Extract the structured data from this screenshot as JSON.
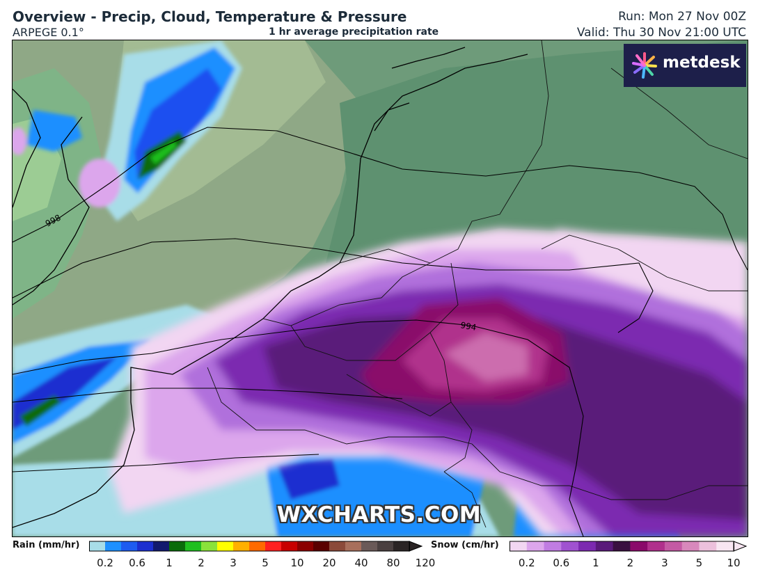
{
  "header": {
    "title": "Overview - Precip, Cloud, Temperature & Pressure",
    "model": "ARPEGE 0.1°",
    "subtitle": "1 hr average precipitation rate",
    "run": "Run: Mon 27 Nov 00Z",
    "valid": "Valid: Thu 30 Nov 21:00 UTC"
  },
  "logo": {
    "text": "metdesk",
    "icon": "starburst-icon"
  },
  "watermark": "WXCHARTS.COM",
  "isobars": [
    {
      "label": "998"
    },
    {
      "label": "994"
    }
  ],
  "legend": {
    "rain": {
      "label": "Rain (mm/hr)",
      "colors": [
        "#a8dde8",
        "#1e90ff",
        "#1e5cf0",
        "#1c2fd0",
        "#121a6e",
        "#0a6b0a",
        "#1fbf1f",
        "#8ae23a",
        "#ffff00",
        "#ffb000",
        "#ff6a00",
        "#ff2020",
        "#c80000",
        "#8b0000",
        "#5a0000",
        "#8b4a3a",
        "#a86f5c",
        "#6a5a58",
        "#4a4040",
        "#2a2424"
      ],
      "ticks": [
        "0.2",
        "0.6",
        "1",
        "2",
        "3",
        "5",
        "10",
        "20",
        "40",
        "80",
        "120"
      ]
    },
    "snow": {
      "label": "Snow (cm/hr)",
      "colors": [
        "#f2d6f2",
        "#dca6ec",
        "#c07ce2",
        "#a052d0",
        "#7c2ab0",
        "#5a1a7a",
        "#3a1040",
        "#8a0a6a",
        "#b0308c",
        "#c45aa4",
        "#d888bc",
        "#ecc0dc",
        "#f8e6f2"
      ],
      "ticks": [
        "0.2",
        "0.6",
        "1",
        "2",
        "3",
        "5",
        "10"
      ]
    }
  }
}
